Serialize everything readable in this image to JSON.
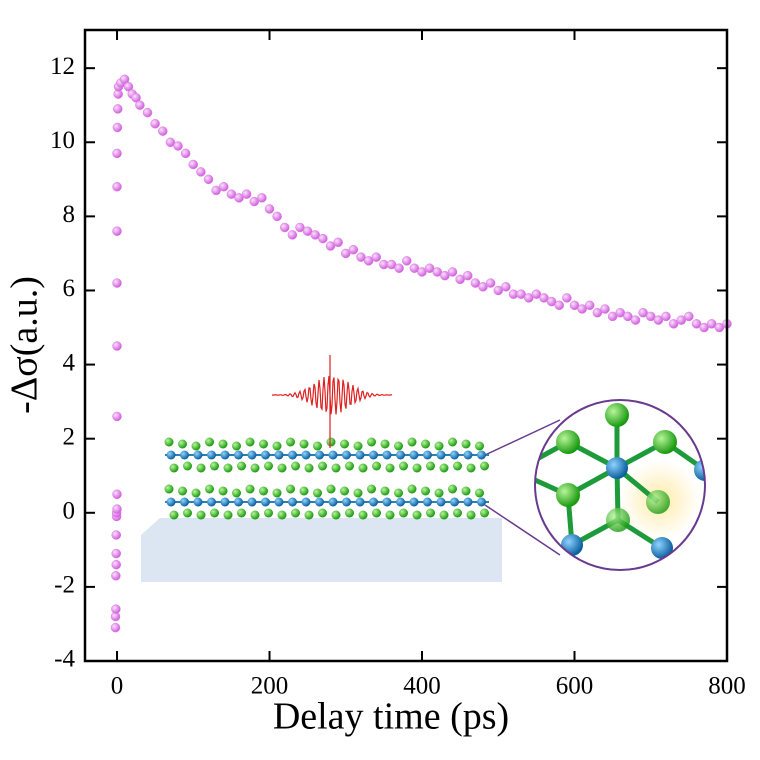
{
  "chart_data": {
    "type": "scatter",
    "xlabel": "Delay time (ps)",
    "ylabel": "-Δσ(a.u.)",
    "xlim": [
      -42,
      800
    ],
    "ylim": [
      -4,
      13.03
    ],
    "xticks": [
      0,
      200,
      400,
      600,
      800
    ],
    "yticks": [
      -4,
      -2,
      0,
      2,
      4,
      6,
      8,
      10,
      12
    ],
    "color": "#e07be6",
    "x": [
      -2,
      -2,
      -1.5,
      -1.5,
      -1,
      -1,
      -1,
      -0.5,
      -0.5,
      0,
      0,
      0,
      0,
      0,
      0,
      0,
      0,
      0.5,
      1,
      1.5,
      2,
      5,
      10,
      15,
      20,
      25,
      30,
      40,
      50,
      60,
      70,
      80,
      90,
      100,
      110,
      120,
      130,
      140,
      150,
      160,
      170,
      180,
      190,
      200,
      210,
      220,
      230,
      240,
      250,
      260,
      270,
      280,
      290,
      300,
      310,
      320,
      330,
      340,
      350,
      360,
      370,
      380,
      390,
      400,
      410,
      420,
      430,
      440,
      450,
      460,
      470,
      480,
      490,
      500,
      510,
      520,
      530,
      540,
      550,
      560,
      570,
      580,
      590,
      600,
      610,
      620,
      630,
      640,
      650,
      660,
      670,
      680,
      690,
      700,
      710,
      720,
      730,
      740,
      750,
      760,
      770,
      780,
      790,
      800
    ],
    "values": [
      -3.1,
      -2.8,
      -2.6,
      -1.7,
      -1.4,
      -1.1,
      -0.6,
      -0.1,
      0,
      0.1,
      0.5,
      2.6,
      4.5,
      6.2,
      7.6,
      8.8,
      9.7,
      10.4,
      10.9,
      11.3,
      11.5,
      11.6,
      11.7,
      11.5,
      11.3,
      11.2,
      11.0,
      10.8,
      10.5,
      10.3,
      10.0,
      9.9,
      9.7,
      9.4,
      9.2,
      9.0,
      8.7,
      8.8,
      8.6,
      8.5,
      8.6,
      8.4,
      8.5,
      8.2,
      8.0,
      7.7,
      7.5,
      7.7,
      7.6,
      7.5,
      7.4,
      7.2,
      7.3,
      7.0,
      7.1,
      6.9,
      6.8,
      6.9,
      6.7,
      6.7,
      6.6,
      6.8,
      6.6,
      6.5,
      6.6,
      6.5,
      6.4,
      6.5,
      6.3,
      6.4,
      6.2,
      6.1,
      6.2,
      6.0,
      6.1,
      5.9,
      5.9,
      5.8,
      5.9,
      5.8,
      5.7,
      5.6,
      5.8,
      5.6,
      5.5,
      5.6,
      5.4,
      5.5,
      5.3,
      5.4,
      5.3,
      5.2,
      5.4,
      5.3,
      5.2,
      5.3,
      5.1,
      5.2,
      5.3,
      5.1,
      5.0,
      5.1,
      5.0,
      5.1
    ]
  }
}
